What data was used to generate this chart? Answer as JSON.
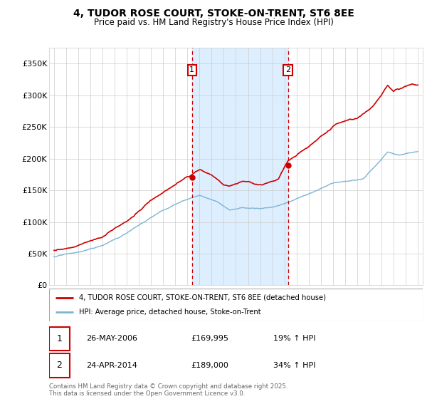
{
  "title": "4, TUDOR ROSE COURT, STOKE-ON-TRENT, ST6 8EE",
  "subtitle": "Price paid vs. HM Land Registry's House Price Index (HPI)",
  "ylim": [
    0,
    375000
  ],
  "yticks": [
    0,
    50000,
    100000,
    150000,
    200000,
    250000,
    300000,
    350000
  ],
  "ytick_labels": [
    "£0",
    "£50K",
    "£100K",
    "£150K",
    "£200K",
    "£250K",
    "£300K",
    "£350K"
  ],
  "xticks": [
    1995,
    1996,
    1997,
    1998,
    1999,
    2000,
    2001,
    2002,
    2003,
    2004,
    2005,
    2006,
    2007,
    2008,
    2009,
    2010,
    2011,
    2012,
    2013,
    2014,
    2015,
    2016,
    2017,
    2018,
    2019,
    2020,
    2021,
    2022,
    2023,
    2024,
    2025
  ],
  "purchase1_year": 2006.38,
  "purchase1_price": 169995,
  "purchase2_year": 2014.29,
  "purchase2_price": 189000,
  "red_line_color": "#cc0000",
  "blue_line_color": "#7fb3d3",
  "shade_color": "#ddeeff",
  "vline_color": "#cc0000",
  "legend_label1": "4, TUDOR ROSE COURT, STOKE-ON-TRENT, ST6 8EE (detached house)",
  "legend_label2": "HPI: Average price, detached house, Stoke-on-Trent",
  "footer": "Contains HM Land Registry data © Crown copyright and database right 2025.\nThis data is licensed under the Open Government Licence v3.0.",
  "background_color": "#ffffff",
  "grid_color": "#cccccc",
  "xlim": [
    1994.6,
    2025.4
  ]
}
